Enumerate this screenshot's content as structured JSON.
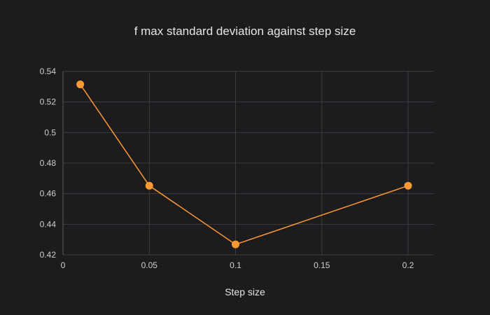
{
  "chart_data": {
    "type": "line",
    "title": "f max standard deviation against step size",
    "xlabel": "Step size",
    "ylabel": "",
    "xlim": [
      0,
      0.215
    ],
    "ylim": [
      0.42,
      0.54
    ],
    "x_ticks": [
      0,
      0.05,
      0.1,
      0.15,
      0.2
    ],
    "x_tick_labels": [
      "0",
      "0.05",
      "0.1",
      "0.15",
      "0.2"
    ],
    "y_ticks": [
      0.42,
      0.44,
      0.46,
      0.48,
      0.5,
      0.52,
      0.54
    ],
    "y_tick_labels": [
      "0.42",
      "0.44",
      "0.46",
      "0.48",
      "0.5",
      "0.52",
      "0.54"
    ],
    "grid": true,
    "legend": "none",
    "series": [
      {
        "color": "#ff9933",
        "mode": "lines+markers",
        "x": [
          0.01,
          0.05,
          0.1,
          0.2
        ],
        "y": [
          0.5315,
          0.4652,
          0.4268,
          0.4652
        ]
      }
    ]
  },
  "colors": {
    "background": "#1c1c1e",
    "grid": "#3d3d40",
    "text": "#e6e6e6",
    "series": "#ff9933"
  }
}
